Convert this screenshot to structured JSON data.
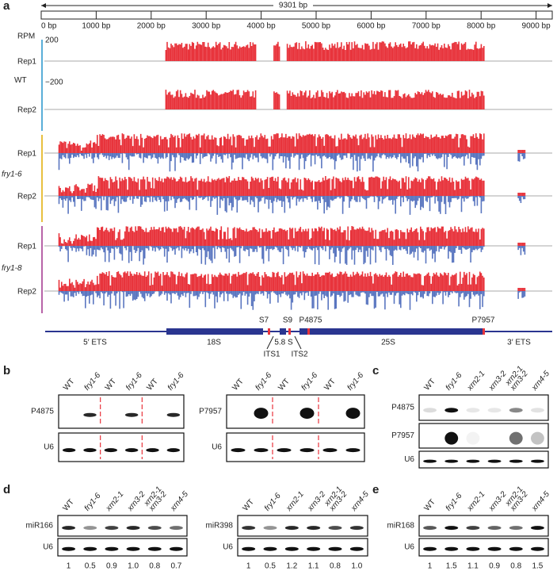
{
  "panels": {
    "a": {
      "label": "a",
      "ruler": {
        "length": "9301 bp",
        "ticks": [
          "0 bp",
          "1000 bp",
          "2000 bp",
          "3000 bp",
          "4000 bp",
          "5000 bp",
          "6000 bp",
          "7000 bp",
          "8000 bp",
          "9000 bp"
        ]
      },
      "tracks": {
        "scale_label": "RPM",
        "max": "200",
        "min": "−200",
        "groups": [
          {
            "name": "WT",
            "reps": [
              "Rep1",
              "Rep2"
            ]
          },
          {
            "name": "fry1-6",
            "reps": [
              "Rep1",
              "Rep2"
            ]
          },
          {
            "name": "fry1-8",
            "reps": [
              "Rep1",
              "Rep2"
            ]
          }
        ]
      },
      "annotation": {
        "regions": [
          "5′ ETS",
          "18S",
          "ITS1",
          "5.8 S",
          "ITS2",
          "25S",
          "3′ ETS"
        ],
        "cleavage_sites": [
          "S7",
          "S9"
        ],
        "probes": [
          "P4875",
          "P7957"
        ]
      }
    },
    "b": {
      "label": "b",
      "blots": [
        {
          "lanes": [
            "WT",
            "fry1-6",
            "WT",
            "fry1-6",
            "WT",
            "fry1-6"
          ],
          "rows": [
            "P4875",
            "U6"
          ]
        },
        {
          "lanes": [
            "WT",
            "fry1-6",
            "WT",
            "fry1-6",
            "WT",
            "fry1-6"
          ],
          "rows": [
            "P7957",
            "U6"
          ]
        }
      ]
    },
    "c": {
      "label": "c",
      "blots": [
        {
          "lanes": [
            "WT",
            "fry1-6",
            "xrn2-1",
            "xrn3-2",
            [
              "xrn2-1",
              "xrn3-2"
            ],
            "xrn4-5"
          ],
          "rows": [
            "P4875",
            "P7957",
            "U6"
          ]
        }
      ]
    },
    "d": {
      "label": "d",
      "blots": [
        {
          "lanes": [
            "WT",
            "fry1-6",
            "xrn2-1",
            "xrn3-2",
            [
              "xrn2-1",
              "xrn3-2"
            ],
            "xrn4-5"
          ],
          "rows": [
            "miR166",
            "U6"
          ],
          "quantification": [
            "1",
            "0.5",
            "0.9",
            "1.0",
            "0.8",
            "0.7"
          ]
        },
        {
          "lanes": [
            "WT",
            "fry1-6",
            "xrn2-1",
            "xrn3-2",
            [
              "xrn2-1",
              "xrn3-2"
            ],
            "xrn4-5"
          ],
          "rows": [
            "miR398",
            "U6"
          ],
          "quantification": [
            "1",
            "0.5",
            "1.2",
            "1.1",
            "0.8",
            "1.0"
          ]
        }
      ]
    },
    "e": {
      "label": "e",
      "blots": [
        {
          "lanes": [
            "WT",
            "fry1-6",
            "xrn2-1",
            "xrn3-2",
            [
              "xrn2-1",
              "xrn3-2"
            ],
            "xrn4-5"
          ],
          "rows": [
            "miR168",
            "U6"
          ],
          "quantification": [
            "1",
            "1.5",
            "1.1",
            "0.9",
            "0.8",
            "1.5"
          ]
        }
      ]
    }
  }
}
